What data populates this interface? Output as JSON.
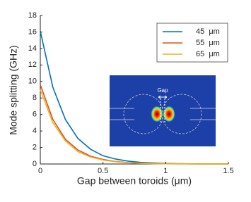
{
  "chart_data": {
    "type": "line",
    "xlabel": "Gap between toroids (μm)",
    "ylabel": "Mode splitting (GHz)",
    "x": [
      0,
      0.1,
      0.2,
      0.3,
      0.4,
      0.5,
      0.6,
      0.7,
      0.8,
      0.9,
      1.0,
      1.1,
      1.2,
      1.3,
      1.4,
      1.5
    ],
    "series": [
      {
        "name": "45  μm",
        "color": "#0072bd",
        "values": [
          16.1,
          9.3,
          5.4,
          3.1,
          1.8,
          1.0,
          0.6,
          0.35,
          0.2,
          0.12,
          0.07,
          0.04,
          0.02,
          0.01,
          0.01,
          0
        ]
      },
      {
        "name": "55  μm",
        "color": "#d95319",
        "values": [
          9.6,
          5.4,
          3.0,
          1.7,
          0.95,
          0.55,
          0.3,
          0.17,
          0.1,
          0.05,
          0.03,
          0.02,
          0.01,
          0,
          0,
          0
        ]
      },
      {
        "name": "65  μm",
        "color": "#edb120",
        "values": [
          9.0,
          5.0,
          2.8,
          1.5,
          0.85,
          0.48,
          0.27,
          0.15,
          0.08,
          0.05,
          0.03,
          0.02,
          0.01,
          0,
          0,
          0
        ]
      }
    ],
    "xlim": [
      0,
      1.5
    ],
    "xticks": [
      0,
      0.5,
      1,
      1.5
    ],
    "ylim": [
      0,
      18
    ],
    "yticks": [
      0,
      2,
      4,
      6,
      8,
      10,
      12,
      14,
      16,
      18
    ],
    "grid": false,
    "legend": "upper right",
    "inset_label": "Gap"
  }
}
